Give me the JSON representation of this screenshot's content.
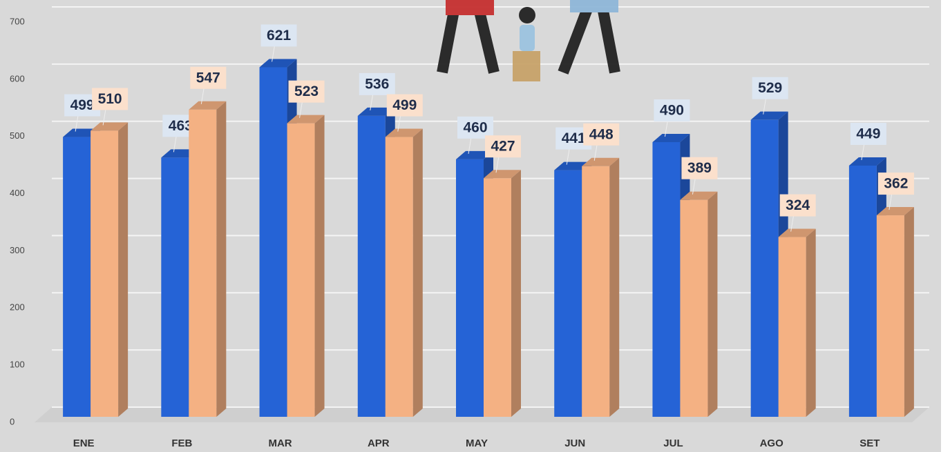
{
  "chart_data": {
    "type": "bar",
    "categories": [
      "ENE",
      "FEB",
      "MAR",
      "APR",
      "MAY",
      "JUN",
      "JUL",
      "AGO",
      "SET"
    ],
    "series": [
      {
        "color": "#2563d6",
        "values": [
          499,
          463,
          621,
          536,
          460,
          441,
          490,
          529,
          449
        ]
      },
      {
        "color": "#f4b183",
        "values": [
          510,
          547,
          523,
          499,
          427,
          448,
          389,
          324,
          362
        ]
      }
    ],
    "ylim": [
      0,
      700
    ],
    "yticks": [
      0,
      100,
      200,
      300,
      400,
      500,
      600,
      700
    ],
    "grid": true
  }
}
